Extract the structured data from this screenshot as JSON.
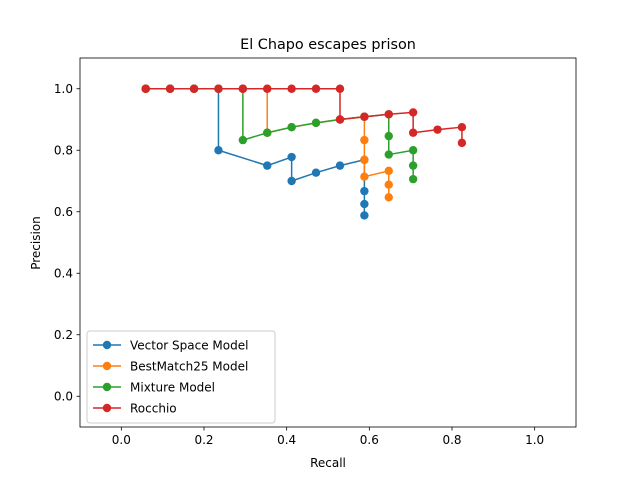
{
  "chart_data": {
    "type": "line",
    "title": "El Chapo escapes prison",
    "xlabel": "Recall",
    "ylabel": "Precision",
    "xlim": [
      -0.1,
      1.1
    ],
    "ylim": [
      -0.1,
      1.1
    ],
    "xticks": [
      "0.0",
      "0.2",
      "0.4",
      "0.6",
      "0.8",
      "1.0"
    ],
    "yticks": [
      "0.0",
      "0.2",
      "0.4",
      "0.6",
      "0.8",
      "1.0"
    ],
    "grid": false,
    "legend_position": "lower-left",
    "series": [
      {
        "name": "Vector Space Model",
        "color": "#1f77b4",
        "points": [
          [
            0.059,
            1.0
          ],
          [
            0.118,
            1.0
          ],
          [
            0.176,
            1.0
          ],
          [
            0.235,
            1.0
          ],
          [
            0.235,
            0.8
          ],
          [
            0.353,
            0.75
          ],
          [
            0.412,
            0.778
          ],
          [
            0.412,
            0.7
          ],
          [
            0.471,
            0.727
          ],
          [
            0.529,
            0.75
          ],
          [
            0.588,
            0.769
          ],
          [
            0.588,
            0.667
          ],
          [
            0.588,
            0.625
          ],
          [
            0.588,
            0.588
          ]
        ]
      },
      {
        "name": "BestMatch25 Model",
        "color": "#ff7f0e",
        "points": [
          [
            0.059,
            1.0
          ],
          [
            0.118,
            1.0
          ],
          [
            0.176,
            1.0
          ],
          [
            0.235,
            1.0
          ],
          [
            0.294,
            1.0
          ],
          [
            0.353,
            1.0
          ],
          [
            0.353,
            0.857
          ],
          [
            0.412,
            0.875
          ],
          [
            0.471,
            0.889
          ],
          [
            0.529,
            0.9
          ],
          [
            0.588,
            0.909
          ],
          [
            0.588,
            0.833
          ],
          [
            0.588,
            0.769
          ],
          [
            0.588,
            0.714
          ],
          [
            0.647,
            0.733
          ],
          [
            0.647,
            0.688
          ],
          [
            0.647,
            0.647
          ]
        ]
      },
      {
        "name": "Mixture Model",
        "color": "#2ca02c",
        "points": [
          [
            0.059,
            1.0
          ],
          [
            0.118,
            1.0
          ],
          [
            0.176,
            1.0
          ],
          [
            0.235,
            1.0
          ],
          [
            0.294,
            1.0
          ],
          [
            0.294,
            0.833
          ],
          [
            0.353,
            0.857
          ],
          [
            0.412,
            0.875
          ],
          [
            0.471,
            0.889
          ],
          [
            0.529,
            0.9
          ],
          [
            0.588,
            0.909
          ],
          [
            0.647,
            0.917
          ],
          [
            0.647,
            0.846
          ],
          [
            0.647,
            0.786
          ],
          [
            0.706,
            0.8
          ],
          [
            0.706,
            0.75
          ],
          [
            0.706,
            0.706
          ]
        ]
      },
      {
        "name": "Rocchio",
        "color": "#d62728",
        "points": [
          [
            0.059,
            1.0
          ],
          [
            0.118,
            1.0
          ],
          [
            0.176,
            1.0
          ],
          [
            0.235,
            1.0
          ],
          [
            0.294,
            1.0
          ],
          [
            0.353,
            1.0
          ],
          [
            0.412,
            1.0
          ],
          [
            0.471,
            1.0
          ],
          [
            0.529,
            1.0
          ],
          [
            0.529,
            0.9
          ],
          [
            0.588,
            0.909
          ],
          [
            0.647,
            0.917
          ],
          [
            0.706,
            0.923
          ],
          [
            0.706,
            0.857
          ],
          [
            0.765,
            0.867
          ],
          [
            0.824,
            0.875
          ],
          [
            0.824,
            0.824
          ]
        ]
      }
    ]
  }
}
